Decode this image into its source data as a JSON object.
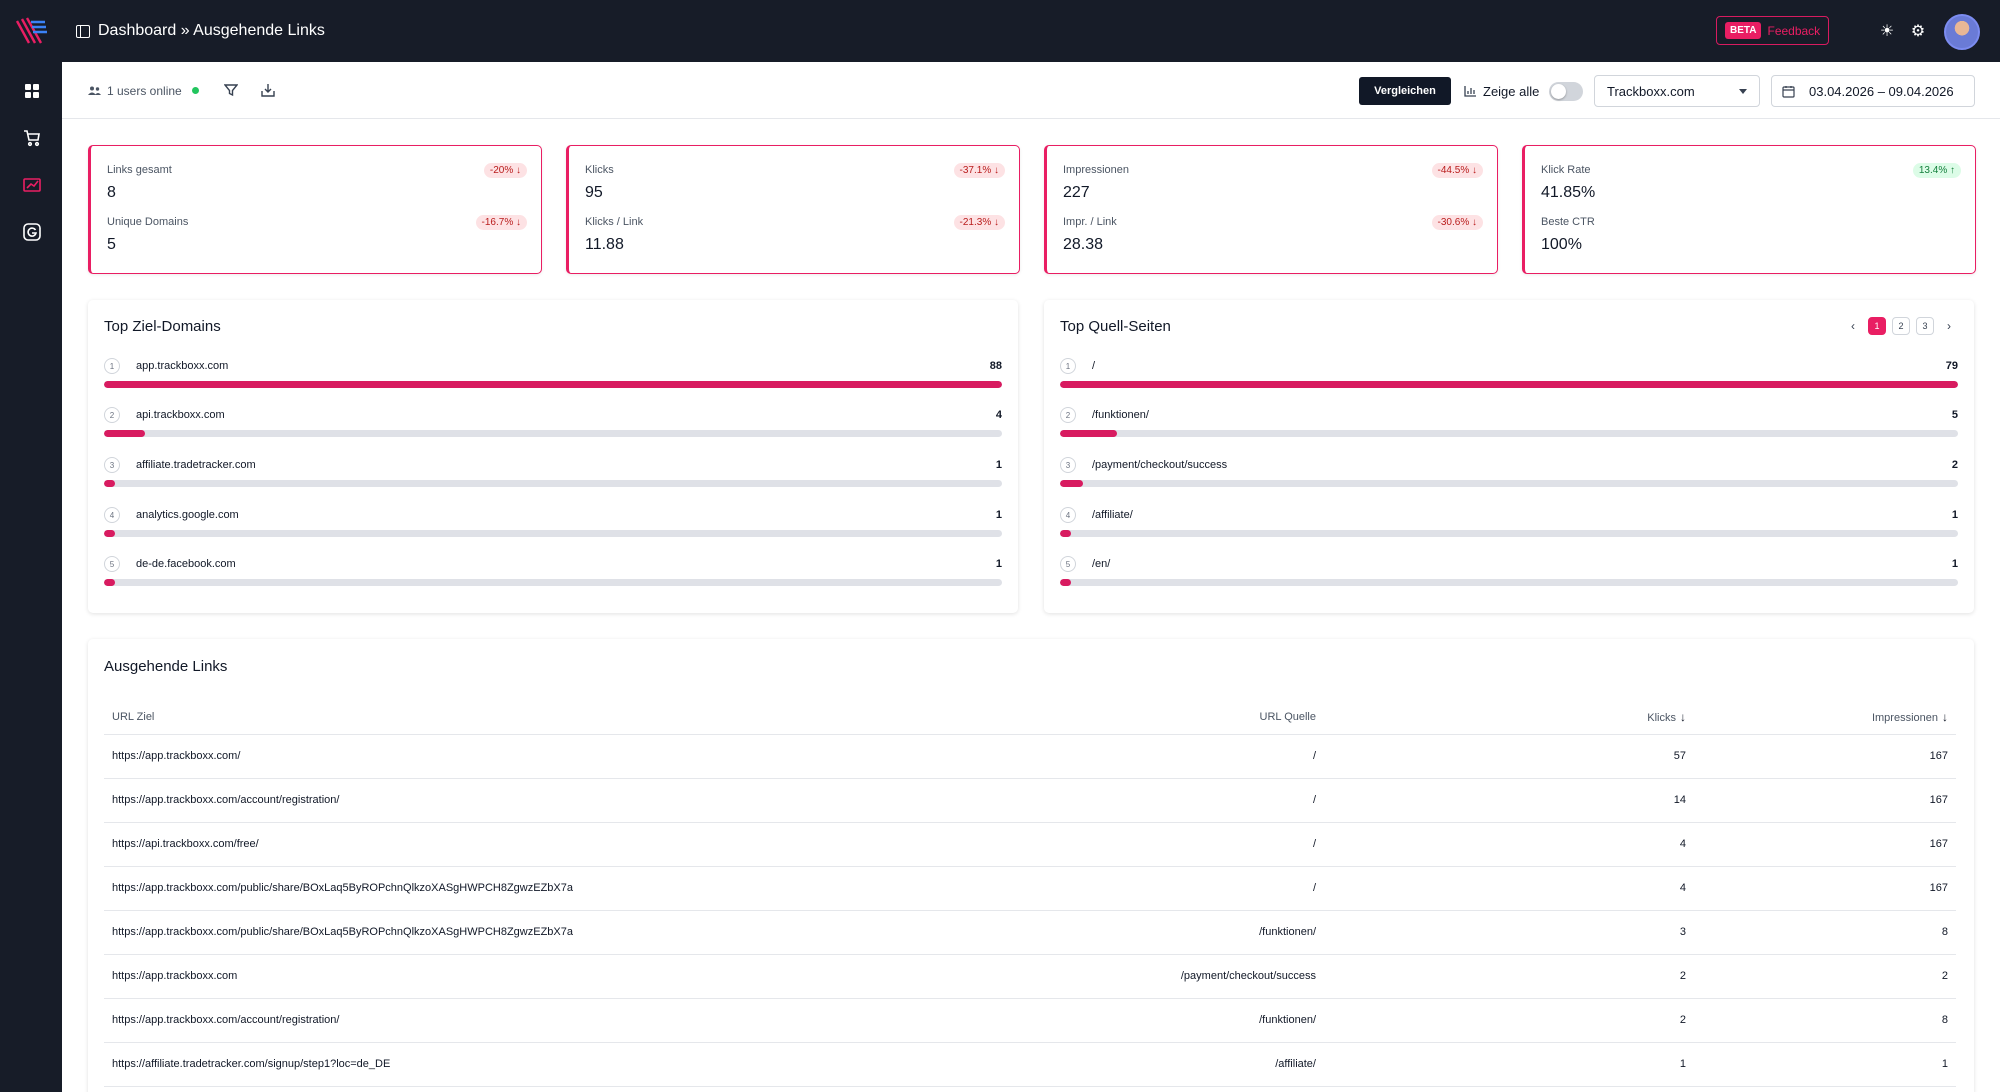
{
  "header": {
    "breadcrumb": "Dashboard » Ausgehende Links",
    "beta_badge": "BETA",
    "feedback_label": "Feedback"
  },
  "sidebar": {
    "items": [
      {
        "icon": "grid-icon"
      },
      {
        "icon": "cart-icon"
      },
      {
        "icon": "analytics-icon",
        "active": true
      },
      {
        "icon": "google-icon"
      }
    ]
  },
  "toolbar": {
    "online_text": "1 users online",
    "compare_label": "Vergleichen",
    "show_all_label": "Zeige alle",
    "project": "Trackboxx.com",
    "date_from": "03.04.2026",
    "date_to": "– 09.04.2026"
  },
  "kpis": [
    {
      "label1": "Links gesamt",
      "value1": "8",
      "badge1": "-20% ↓",
      "label2": "Unique Domains",
      "value2": "5",
      "badge2": "-16.7% ↓"
    },
    {
      "label1": "Klicks",
      "value1": "95",
      "badge1": "-37.1% ↓",
      "label2": "Klicks / Link",
      "value2": "11.88",
      "badge2": "-21.3% ↓"
    },
    {
      "label1": "Impressionen",
      "value1": "227",
      "badge1": "-44.5% ↓",
      "label2": "Impr. / Link",
      "value2": "28.38",
      "badge2": "-30.6% ↓"
    },
    {
      "label1": "Klick Rate",
      "value1": "41.85%",
      "badge1": "13.4% ↑",
      "label2": "Beste CTR",
      "value2": "100%"
    }
  ],
  "top_domains": {
    "title": "Top Ziel-Domains",
    "max": 88,
    "rows": [
      {
        "rank": "1",
        "name": "app.trackboxx.com",
        "count": 88
      },
      {
        "rank": "2",
        "name": "api.trackboxx.com",
        "count": 4
      },
      {
        "rank": "3",
        "name": "affiliate.tradetracker.com",
        "count": 1
      },
      {
        "rank": "4",
        "name": "analytics.google.com",
        "count": 1
      },
      {
        "rank": "5",
        "name": "de-de.facebook.com",
        "count": 1
      }
    ]
  },
  "top_sources": {
    "title": "Top Quell-Seiten",
    "max": 79,
    "pages": [
      "1",
      "2",
      "3"
    ],
    "active_page": "1",
    "rows": [
      {
        "rank": "1",
        "name": "/",
        "count": 79
      },
      {
        "rank": "2",
        "name": "/funktionen/",
        "count": 5
      },
      {
        "rank": "3",
        "name": "/payment/checkout/success",
        "count": 2
      },
      {
        "rank": "4",
        "name": "/affiliate/",
        "count": 1
      },
      {
        "rank": "5",
        "name": "/en/",
        "count": 1
      }
    ]
  },
  "links_table": {
    "title": "Ausgehende Links",
    "columns": {
      "target": "URL Ziel",
      "source": "URL Quelle",
      "clicks": "Klicks",
      "impressions": "Impressionen"
    },
    "rows": [
      {
        "target": "https://app.trackboxx.com/",
        "source": "/",
        "clicks": "57",
        "impressions": "167"
      },
      {
        "target": "https://app.trackboxx.com/account/registration/",
        "source": "/",
        "clicks": "14",
        "impressions": "167"
      },
      {
        "target": "https://api.trackboxx.com/free/",
        "source": "/",
        "clicks": "4",
        "impressions": "167"
      },
      {
        "target": "https://app.trackboxx.com/public/share/BOxLaq5ByROPchnQlkzoXASgHWPCH8ZgwzEZbX7a",
        "source": "/",
        "clicks": "4",
        "impressions": "167"
      },
      {
        "target": "https://app.trackboxx.com/public/share/BOxLaq5ByROPchnQlkzoXASgHWPCH8ZgwzEZbX7a",
        "source": "/funktionen/",
        "clicks": "3",
        "impressions": "8"
      },
      {
        "target": "https://app.trackboxx.com",
        "source": "/payment/checkout/success",
        "clicks": "2",
        "impressions": "2"
      },
      {
        "target": "https://app.trackboxx.com/account/registration/",
        "source": "/funktionen/",
        "clicks": "2",
        "impressions": "8"
      },
      {
        "target": "https://affiliate.tradetracker.com/signup/step1?loc=de_DE",
        "source": "/affiliate/",
        "clicks": "1",
        "impressions": "1"
      }
    ]
  }
}
